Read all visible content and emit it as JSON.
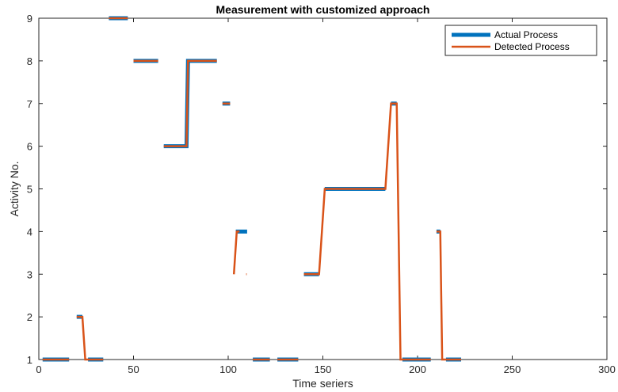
{
  "chart_data": {
    "type": "line",
    "title": "Measurement with customized approach",
    "xlabel": "Time seriers",
    "ylabel": "Activity No.",
    "xlim": [
      0,
      300
    ],
    "ylim": [
      1,
      9
    ],
    "xticks": [
      0,
      50,
      100,
      150,
      200,
      250,
      300
    ],
    "yticks": [
      1,
      2,
      3,
      4,
      5,
      6,
      7,
      8,
      9
    ],
    "grid": false,
    "legend_position": "top-right",
    "series": [
      {
        "name": "Actual Process",
        "color": "#0072BD",
        "segments": [
          [
            [
              2,
              1
            ],
            [
              16,
              1
            ]
          ],
          [
            [
              20,
              2
            ],
            [
              23,
              2
            ]
          ],
          [
            [
              26,
              1
            ],
            [
              34,
              1
            ]
          ],
          [
            [
              37,
              9
            ],
            [
              47,
              9
            ]
          ],
          [
            [
              50,
              8
            ],
            [
              63,
              8
            ]
          ],
          [
            [
              66,
              6
            ],
            [
              78,
              6
            ],
            [
              78.8,
              8
            ],
            [
              94,
              8
            ]
          ],
          [
            [
              97,
              7
            ],
            [
              101,
              7
            ]
          ],
          [
            [
              104,
              4
            ],
            [
              110,
              4
            ]
          ],
          [
            [
              113,
              1
            ],
            [
              122,
              1
            ]
          ],
          [
            [
              126,
              1
            ],
            [
              137,
              1
            ]
          ],
          [
            [
              140,
              3
            ],
            [
              148,
              3
            ]
          ],
          [
            [
              151,
              5
            ],
            [
              183,
              5
            ]
          ],
          [
            [
              186,
              7
            ],
            [
              189,
              7
            ]
          ],
          [
            [
              192,
              1
            ],
            [
              207,
              1
            ]
          ],
          [
            [
              210,
              4
            ],
            [
              212,
              4
            ]
          ],
          [
            [
              215,
              1
            ],
            [
              223,
              1
            ]
          ]
        ]
      },
      {
        "name": "Detected Process",
        "color": "#D95319",
        "segments": [
          [
            [
              2,
              1
            ],
            [
              16,
              1
            ]
          ],
          [
            [
              20,
              2
            ],
            [
              23,
              2
            ],
            [
              24.5,
              1
            ],
            [
              34,
              1
            ]
          ],
          [
            [
              37,
              9
            ],
            [
              47,
              9
            ]
          ],
          [
            [
              50,
              8
            ],
            [
              63,
              8
            ]
          ],
          [
            [
              66,
              6
            ],
            [
              78,
              6
            ],
            [
              78.8,
              8
            ],
            [
              94,
              8
            ]
          ],
          [
            [
              97,
              7
            ],
            [
              101,
              7
            ]
          ],
          [
            [
              103,
              3
            ],
            [
              104.5,
              4
            ],
            [
              106,
              4
            ]
          ],
          [
            [
              109.5,
              3
            ],
            [
              109.8,
              3
            ]
          ],
          [
            [
              113,
              1
            ],
            [
              122,
              1
            ]
          ],
          [
            [
              126,
              1
            ],
            [
              137,
              1
            ]
          ],
          [
            [
              140,
              3
            ],
            [
              148,
              3
            ],
            [
              151,
              5
            ],
            [
              183,
              5
            ],
            [
              186,
              7
            ],
            [
              189,
              7
            ],
            [
              191,
              1
            ],
            [
              207,
              1
            ]
          ],
          [
            [
              210,
              4
            ],
            [
              212,
              4
            ],
            [
              213,
              1
            ],
            [
              223,
              1
            ]
          ]
        ]
      }
    ]
  }
}
